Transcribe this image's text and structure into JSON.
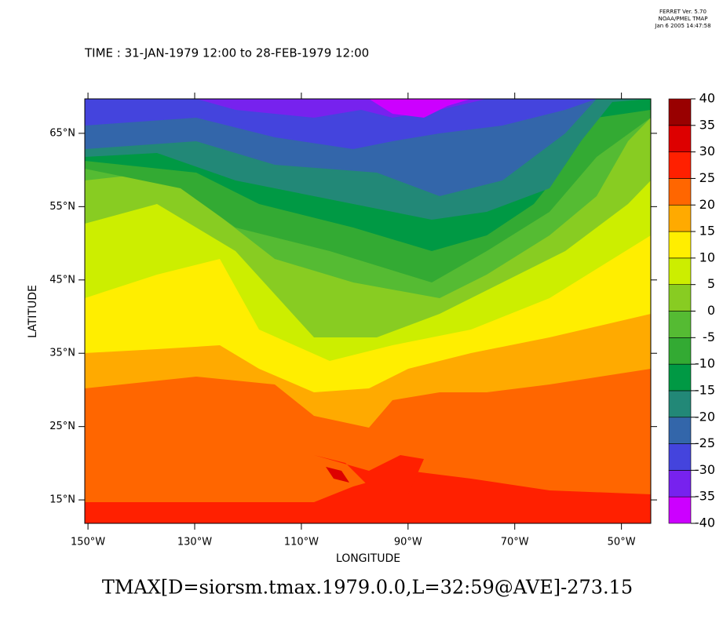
{
  "chart_data": {
    "type": "map",
    "header": [
      "FERRET Ver. 5.70",
      "NOAA/PMEL TMAP",
      "Jan  6 2005 14:47:58"
    ],
    "title": "TIME : 31-JAN-1979 12:00 to 28-FEB-1979 12:00",
    "xlabel": "LONGITUDE",
    "ylabel": "LATITUDE",
    "expression": "TMAX[D=siorsm.tmax.1979.0.0,L=32:59@AVE]-273.15",
    "xlim": [
      -150.6,
      -44.5
    ],
    "ylim": [
      11.8,
      69.7
    ],
    "xticks": [
      {
        "value": -150,
        "label": "150°W"
      },
      {
        "value": -130,
        "label": "130°W"
      },
      {
        "value": -110,
        "label": "110°W"
      },
      {
        "value": -90,
        "label": "90°W"
      },
      {
        "value": -70,
        "label": "70°W"
      },
      {
        "value": -50,
        "label": "50°W"
      }
    ],
    "yticks": [
      {
        "value": 15,
        "label": "15°N"
      },
      {
        "value": 25,
        "label": "25°N"
      },
      {
        "value": 35,
        "label": "35°N"
      },
      {
        "value": 45,
        "label": "45°N"
      },
      {
        "value": 55,
        "label": "55°N"
      },
      {
        "value": 65,
        "label": "65°N"
      }
    ],
    "colorbar": {
      "levels": [
        -40,
        -35,
        -30,
        -25,
        -20,
        -15,
        -10,
        -5,
        0,
        5,
        10,
        15,
        20,
        25,
        30,
        35,
        40
      ],
      "colors": [
        "#cc00ff",
        "#7722ee",
        "#4444dd",
        "#3366aa",
        "#228877",
        "#009944",
        "#33aa33",
        "#55bb33",
        "#88cc22",
        "#ccee00",
        "#ffee00",
        "#ffaa00",
        "#ff6600",
        "#ff2000",
        "#dd0000",
        "#990000"
      ]
    }
  }
}
